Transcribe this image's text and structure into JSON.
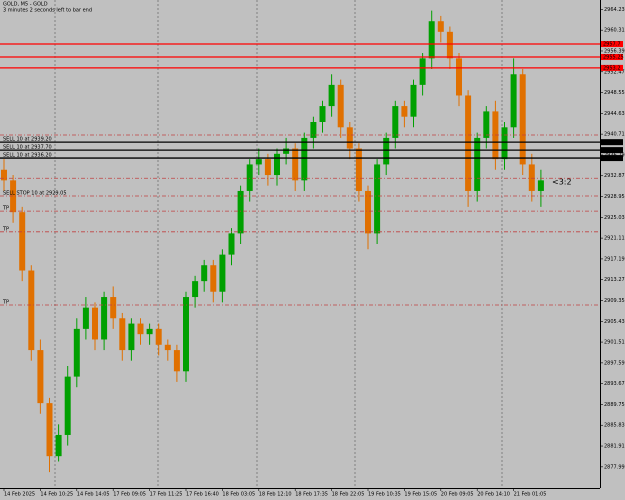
{
  "chart_data": {
    "type": "candlestick",
    "title": "GOLD, M5 - GOLD",
    "subtitle": "3 minutes 2 seconds left to bar end",
    "annotation": "<3:2",
    "up_color": "#00a000",
    "down_color": "#e07000",
    "ylim": [
      2874.0,
      2966.0
    ],
    "yticks": [
      2964.23,
      2960.31,
      2956.39,
      2952.47,
      2948.55,
      2944.63,
      2940.71,
      2936.79,
      2932.87,
      2928.95,
      2925.03,
      2921.11,
      2917.19,
      2913.27,
      2909.35,
      2905.43,
      2901.51,
      2897.59,
      2893.67,
      2889.75,
      2885.83,
      2881.91,
      2877.99
    ],
    "xticks": [
      {
        "value": 0,
        "label": "14 Feb 2025"
      },
      {
        "value": 4,
        "label": "14 Feb 10:25"
      },
      {
        "value": 8,
        "label": "14 Feb 14:05"
      },
      {
        "value": 12,
        "label": "17 Feb 09:05"
      },
      {
        "value": 16,
        "label": "17 Feb 11:25"
      },
      {
        "value": 20,
        "label": "17 Feb 16:40"
      },
      {
        "value": 24,
        "label": "18 Feb 03:05"
      },
      {
        "value": 28,
        "label": "18 Feb 12:10"
      },
      {
        "value": 32,
        "label": "18 Feb 17:35"
      },
      {
        "value": 36,
        "label": "18 Feb 22:05"
      },
      {
        "value": 40,
        "label": "19 Feb 10:35"
      },
      {
        "value": 44,
        "label": "19 Feb 15:05"
      },
      {
        "value": 48,
        "label": "20 Feb 09:05"
      },
      {
        "value": 52,
        "label": "20 Feb 14:10"
      },
      {
        "value": 56,
        "label": "21 Feb 01:05"
      }
    ],
    "open": [
      2934,
      2932,
      2926,
      2915,
      2900,
      2890,
      2880,
      2884,
      2895,
      2904,
      2908,
      2902,
      2910,
      2906,
      2900,
      2905,
      2903,
      2904,
      2901,
      2900,
      2896,
      2910,
      2913,
      2916,
      2911,
      2918,
      2922,
      2930,
      2935,
      2936,
      2933,
      2937,
      2938,
      2932,
      2940,
      2943,
      2946,
      2950,
      2942,
      2938,
      2930,
      2922,
      2935,
      2940,
      2946,
      2944,
      2950,
      2955,
      2962,
      2960,
      2955,
      2948,
      2930,
      2940,
      2945,
      2936,
      2942,
      2952,
      2935,
      2930
    ],
    "high": [
      2936,
      2933,
      2927,
      2916,
      2902,
      2891,
      2886,
      2897,
      2906,
      2910,
      2909,
      2911,
      2912,
      2907,
      2906,
      2906,
      2905,
      2905,
      2902,
      2901,
      2911,
      2914,
      2917,
      2917,
      2919,
      2923,
      2931,
      2936,
      2938,
      2937,
      2938,
      2940,
      2939,
      2941,
      2944,
      2947,
      2952,
      2951,
      2943,
      2939,
      2931,
      2936,
      2941,
      2947,
      2947,
      2951,
      2956,
      2964,
      2963,
      2961,
      2956,
      2949,
      2941,
      2946,
      2947,
      2943,
      2955,
      2953,
      2937,
      2934
    ],
    "low": [
      2930,
      2924,
      2913,
      2898,
      2888,
      2877,
      2879,
      2882,
      2893,
      2902,
      2900,
      2900,
      2904,
      2898,
      2898,
      2901,
      2901,
      2899,
      2898,
      2894,
      2894,
      2908,
      2911,
      2909,
      2909,
      2916,
      2920,
      2928,
      2933,
      2931,
      2931,
      2935,
      2930,
      2930,
      2938,
      2941,
      2944,
      2940,
      2936,
      2928,
      2919,
      2920,
      2933,
      2938,
      2942,
      2942,
      2948,
      2953,
      2958,
      2953,
      2946,
      2927,
      2928,
      2938,
      2934,
      2934,
      2940,
      2933,
      2928,
      2927
    ],
    "close": [
      2932,
      2926,
      2915,
      2900,
      2890,
      2880,
      2884,
      2895,
      2904,
      2908,
      2902,
      2910,
      2906,
      2900,
      2905,
      2903,
      2904,
      2901,
      2900,
      2896,
      2910,
      2913,
      2916,
      2911,
      2918,
      2922,
      2930,
      2935,
      2936,
      2933,
      2937,
      2938,
      2932,
      2940,
      2943,
      2946,
      2950,
      2942,
      2938,
      2930,
      2922,
      2935,
      2940,
      2946,
      2944,
      2950,
      2955,
      2962,
      2960,
      2955,
      2948,
      2930,
      2940,
      2945,
      2936,
      2942,
      2952,
      2935,
      2930,
      2932
    ],
    "levels": [
      {
        "price": 2957.7,
        "color": "#ff0000",
        "style": "solid"
      },
      {
        "price": 2955.25,
        "color": "#ff0000",
        "style": "solid"
      },
      {
        "price": 2953.2,
        "color": "#ff0000",
        "style": "solid"
      },
      {
        "price": 2940.55,
        "color": "#c04040",
        "style": "dashed"
      },
      {
        "price": 2939.2,
        "color": "#000000",
        "style": "solid",
        "label": "SELL 10 at 2939.20"
      },
      {
        "price": 2937.7,
        "color": "#000000",
        "style": "solid",
        "label": "SELL 10 at 2937.70"
      },
      {
        "price": 2936.2,
        "color": "#000000",
        "style": "solid",
        "label": "SELL 10 at 2936.20"
      },
      {
        "price": 2932.4,
        "color": "#c04040",
        "style": "dashed"
      },
      {
        "price": 2929.05,
        "color": "#c04040",
        "style": "dashed",
        "label": "SELL STOP 10 at 2929.05"
      },
      {
        "price": 2926.2,
        "color": "#c04040",
        "style": "dashed",
        "label": "TP"
      },
      {
        "price": 2922.3,
        "color": "#c04040",
        "style": "dashed",
        "label": "TP"
      },
      {
        "price": 2908.5,
        "color": "#c04040",
        "style": "dashed",
        "label": "TP"
      }
    ]
  }
}
